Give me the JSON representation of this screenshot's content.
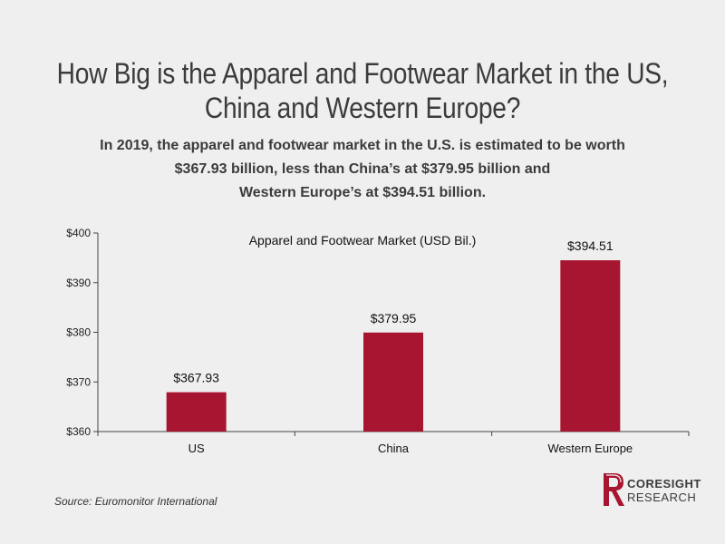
{
  "header": {
    "title_line1": "How Big is the Apparel and Footwear Market in the US,",
    "title_line2": "China and Western Europe?",
    "subtitle_line1": "In 2019, the apparel and footwear market in the U.S. is estimated to be worth",
    "subtitle_line2": "$367.93 billion, less than China’s at $379.95 billion and",
    "subtitle_line3": "Western Europe’s at $394.51 billion."
  },
  "chart_data": {
    "type": "bar",
    "title": "Apparel and Footwear Market (USD Bil.)",
    "categories": [
      "US",
      "China",
      "Western Europe"
    ],
    "values": [
      367.93,
      379.95,
      394.51
    ],
    "data_labels": [
      "$367.93",
      "$379.95",
      "$394.51"
    ],
    "ylim": [
      360,
      400
    ],
    "yticks": [
      360,
      370,
      380,
      390,
      400
    ],
    "ytick_labels": [
      "$360",
      "$370",
      "$380",
      "$390",
      "$400"
    ],
    "xlabel": "",
    "ylabel": "",
    "grid": false,
    "bar_color": "#a81530"
  },
  "footer": {
    "source": "Source: Euromonitor International",
    "logo_line1": "CORESIGHT",
    "logo_line2": "RESEARCH"
  },
  "colors": {
    "background": "#efefef",
    "accent": "#a81530",
    "text": "#3b3b3b"
  }
}
